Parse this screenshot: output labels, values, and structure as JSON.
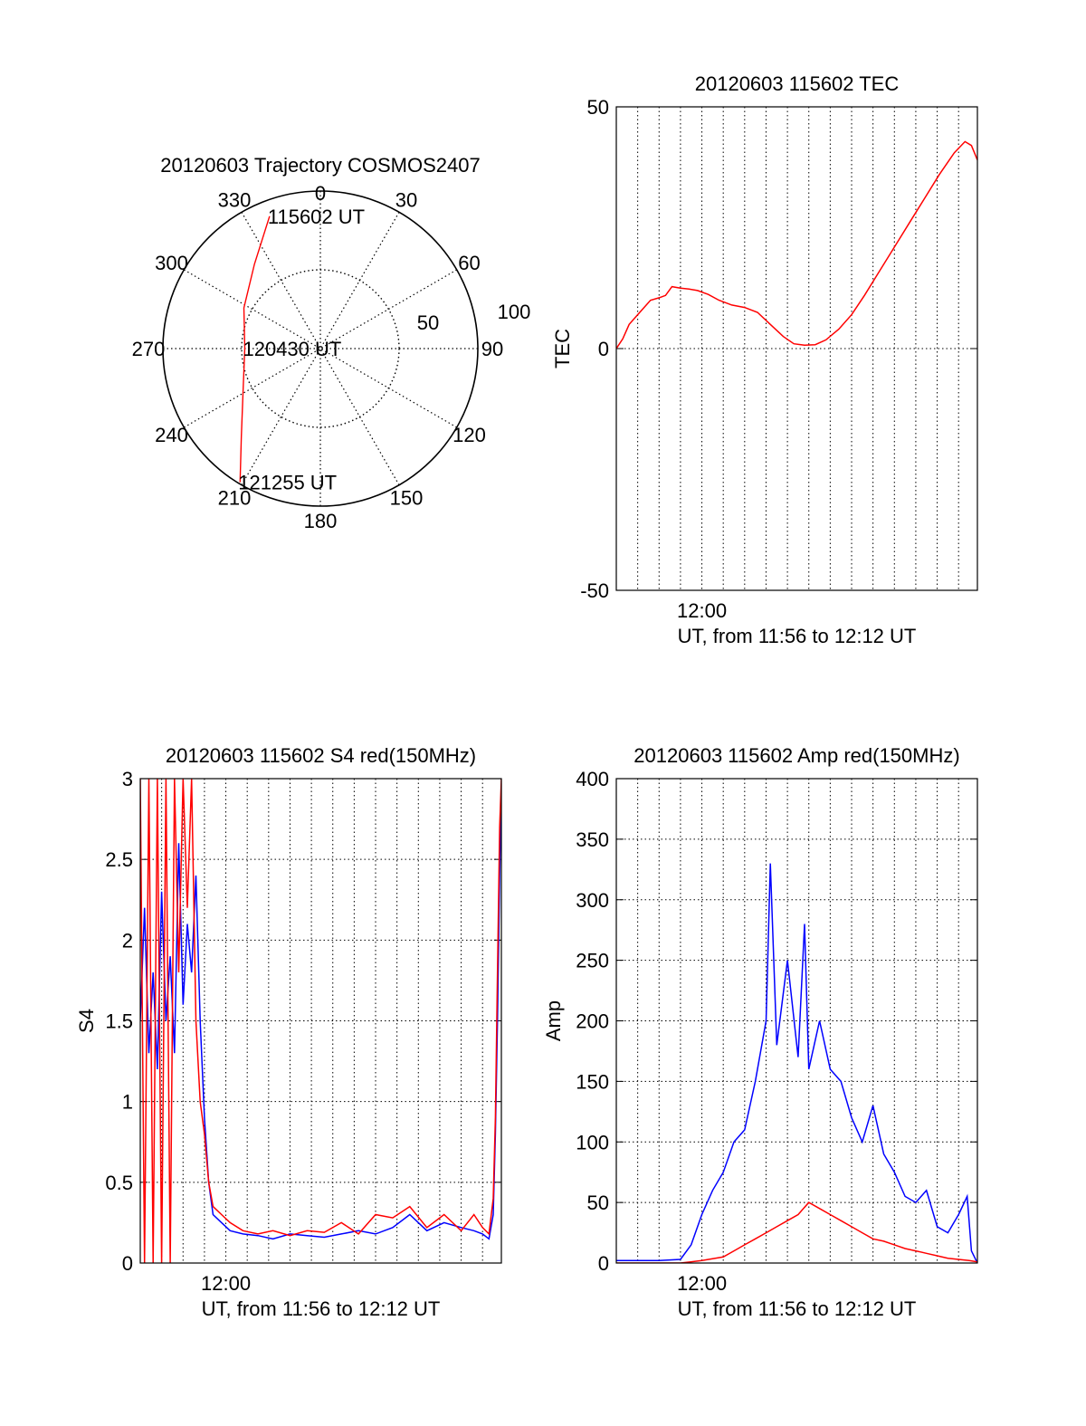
{
  "chart_data": [
    {
      "type": "polar",
      "title": "20120603 Trajectory COSMOS2407",
      "azimuth_labels": [
        "0",
        "30",
        "60",
        "90",
        "120",
        "150",
        "180",
        "210",
        "240",
        "270",
        "300",
        "330"
      ],
      "radius_labels": [
        "50",
        "100"
      ],
      "rlim": [
        0,
        100
      ],
      "grid": true,
      "trajectory": {
        "color": "#ff0000",
        "points": [
          {
            "az": 339,
            "r": 90
          },
          {
            "az": 322,
            "r": 68
          },
          {
            "az": 298,
            "r": 55
          },
          {
            "az": 270,
            "r": 48
          },
          {
            "az": 243,
            "r": 55
          },
          {
            "az": 222,
            "r": 75
          },
          {
            "az": 211,
            "r": 99
          }
        ],
        "annotations": [
          {
            "text": "115602 UT",
            "az": 339,
            "r": 90
          },
          {
            "text": "120430 UT",
            "az": 270,
            "r": 48
          },
          {
            "text": "121255 UT",
            "az": 211,
            "r": 99
          }
        ]
      }
    },
    {
      "type": "line",
      "title": "20120603 115602 TEC",
      "xlabel": "UT, from 11:56 to 12:12 UT",
      "ylabel": "TEC",
      "xlim": [
        0,
        16.88
      ],
      "ylim": [
        -50,
        50
      ],
      "yticks": [
        "-50",
        "0",
        "50"
      ],
      "xtick_labels": [
        {
          "value": 4.0,
          "label": "12:00"
        }
      ],
      "grid": true,
      "series": [
        {
          "color": "#ff0000",
          "x": [
            0,
            0.3,
            0.6,
            1.0,
            1.3,
            1.6,
            2.0,
            2.3,
            2.6,
            3.0,
            3.4,
            3.8,
            4.3,
            4.8,
            5.4,
            6.0,
            6.6,
            7.2,
            7.8,
            8.3,
            8.8,
            9.3,
            9.8,
            10.4,
            11.0,
            11.6,
            12.3,
            13.0,
            13.7,
            14.4,
            15.1,
            15.8,
            16.3,
            16.6,
            16.88
          ],
          "y": [
            0,
            2,
            5,
            7,
            8.5,
            10,
            10.5,
            11,
            12.8,
            12.5,
            12.3,
            12,
            11.2,
            10,
            9,
            8.5,
            7.5,
            5,
            2.5,
            1,
            0.7,
            0.8,
            1.8,
            4,
            7,
            11,
            16,
            21,
            26,
            31,
            36,
            40.5,
            42.8,
            42,
            39
          ]
        }
      ]
    },
    {
      "type": "line",
      "title": "20120603 115602 S4 red(150MHz)",
      "xlabel": "UT, from 11:56 to 12:12 UT",
      "ylabel": "S4",
      "xlim": [
        0,
        16.88
      ],
      "ylim": [
        0,
        3
      ],
      "yticks": [
        "0",
        "0.5",
        "1",
        "1.5",
        "2",
        "2.5",
        "3"
      ],
      "xtick_labels": [
        {
          "value": 4.0,
          "label": "12:00"
        }
      ],
      "grid": true,
      "series": [
        {
          "color": "#0000ff",
          "x": [
            0,
            0.2,
            0.4,
            0.6,
            0.8,
            1.0,
            1.2,
            1.4,
            1.6,
            1.8,
            2.0,
            2.2,
            2.4,
            2.6,
            2.8,
            3.0,
            3.2,
            3.4,
            3.8,
            4.2,
            4.8,
            5.5,
            6.2,
            7.0,
            7.8,
            8.6,
            9.4,
            10.2,
            11.0,
            11.8,
            12.6,
            13.4,
            14.2,
            15.0,
            15.6,
            16.0,
            16.3,
            16.5,
            16.6,
            16.7,
            16.8,
            16.88
          ],
          "y": [
            1.5,
            2.2,
            1.3,
            1.8,
            1.2,
            2.3,
            1.5,
            1.9,
            1.3,
            2.6,
            1.6,
            2.1,
            1.8,
            2.4,
            1.5,
            0.9,
            0.5,
            0.3,
            0.25,
            0.2,
            0.18,
            0.17,
            0.15,
            0.18,
            0.17,
            0.16,
            0.18,
            0.2,
            0.18,
            0.22,
            0.3,
            0.2,
            0.25,
            0.22,
            0.2,
            0.18,
            0.15,
            0.3,
            0.8,
            1.5,
            2.4,
            2.9
          ]
        },
        {
          "color": "#ff0000",
          "x": [
            0,
            0.2,
            0.4,
            0.6,
            0.8,
            1.0,
            1.2,
            1.4,
            1.6,
            1.8,
            2.0,
            2.2,
            2.4,
            2.6,
            2.8,
            3.0,
            3.2,
            3.4,
            3.8,
            4.2,
            4.8,
            5.5,
            6.2,
            7.0,
            7.8,
            8.6,
            9.4,
            10.2,
            11.0,
            11.8,
            12.6,
            13.4,
            14.2,
            15.0,
            15.6,
            16.0,
            16.3,
            16.5,
            16.6,
            16.7,
            16.8,
            16.88
          ],
          "y": [
            3,
            0,
            3,
            0,
            3,
            0,
            3,
            0,
            3,
            1.8,
            3,
            2.2,
            3,
            1.5,
            1.0,
            0.8,
            0.5,
            0.35,
            0.3,
            0.25,
            0.2,
            0.18,
            0.2,
            0.17,
            0.2,
            0.19,
            0.25,
            0.18,
            0.3,
            0.28,
            0.35,
            0.22,
            0.3,
            0.2,
            0.3,
            0.22,
            0.18,
            0.4,
            0.9,
            1.8,
            2.7,
            3
          ]
        }
      ]
    },
    {
      "type": "line",
      "title": "20120603 115602 Amp red(150MHz)",
      "xlabel": "UT, from 11:56 to 12:12 UT",
      "ylabel": "Amp",
      "xlim": [
        0,
        16.88
      ],
      "ylim": [
        0,
        400
      ],
      "yticks": [
        "0",
        "50",
        "100",
        "150",
        "200",
        "250",
        "300",
        "350",
        "400"
      ],
      "xtick_labels": [
        {
          "value": 4.0,
          "label": "12:00"
        }
      ],
      "grid": true,
      "series": [
        {
          "color": "#0000ff",
          "x": [
            0,
            1.0,
            2.0,
            3.0,
            3.5,
            4.0,
            4.5,
            5.0,
            5.5,
            6.0,
            6.5,
            7.0,
            7.2,
            7.5,
            8.0,
            8.5,
            8.8,
            9.0,
            9.5,
            10.0,
            10.5,
            11.0,
            11.5,
            12.0,
            12.5,
            13.0,
            13.5,
            14.0,
            14.5,
            15.0,
            15.5,
            16.0,
            16.4,
            16.6,
            16.88
          ],
          "y": [
            2,
            2,
            2,
            3,
            15,
            40,
            60,
            75,
            100,
            110,
            150,
            200,
            330,
            180,
            250,
            170,
            280,
            160,
            200,
            160,
            150,
            120,
            100,
            130,
            90,
            75,
            55,
            50,
            60,
            30,
            25,
            40,
            55,
            10,
            0
          ]
        },
        {
          "color": "#ff0000",
          "x": [
            0,
            1.0,
            2.0,
            3.0,
            4.0,
            5.0,
            5.5,
            6.0,
            6.5,
            7.0,
            7.5,
            8.0,
            8.5,
            9.0,
            9.5,
            10.0,
            10.5,
            11.0,
            11.5,
            12.0,
            12.5,
            13.0,
            13.5,
            14.0,
            14.5,
            15.0,
            15.5,
            16.0,
            16.5,
            16.88
          ],
          "y": [
            0,
            0,
            0,
            0,
            2,
            5,
            10,
            15,
            20,
            25,
            30,
            35,
            40,
            50,
            45,
            40,
            35,
            30,
            25,
            20,
            18,
            15,
            12,
            10,
            8,
            6,
            4,
            3,
            2,
            1
          ]
        }
      ]
    }
  ]
}
